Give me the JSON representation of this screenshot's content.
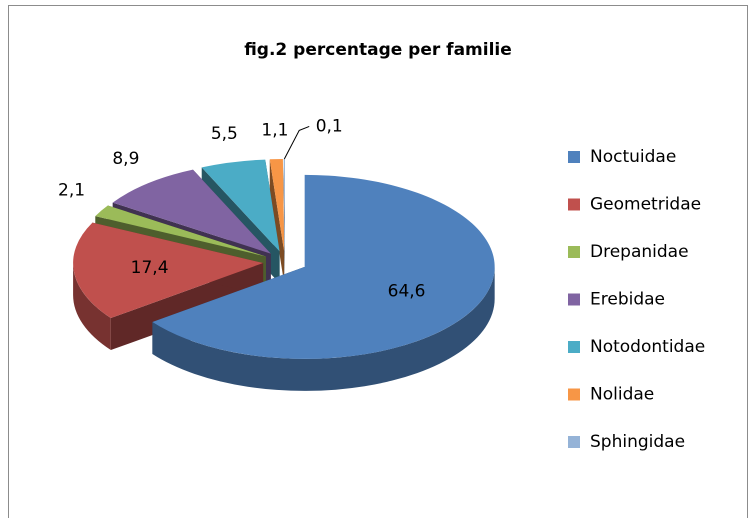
{
  "chart_data": {
    "type": "pie",
    "title": "fig.2  percentage per familie",
    "categories": [
      "Noctuidae",
      "Geometridae",
      "Drepanidae",
      "Erebidae",
      "Notodontidae",
      "Nolidae",
      "Sphingidae"
    ],
    "values": [
      64.6,
      17.4,
      2.1,
      8.9,
      5.5,
      1.1,
      0.1
    ],
    "value_labels": [
      "64,6",
      "17,4",
      "2,1",
      "8,9",
      "5,5",
      "1,1",
      "0,1"
    ],
    "colors": [
      "#4f81bd",
      "#c0504d",
      "#9bbb59",
      "#8064a2",
      "#4bacc6",
      "#f79646",
      "#95b3d7"
    ],
    "legend": "right"
  }
}
